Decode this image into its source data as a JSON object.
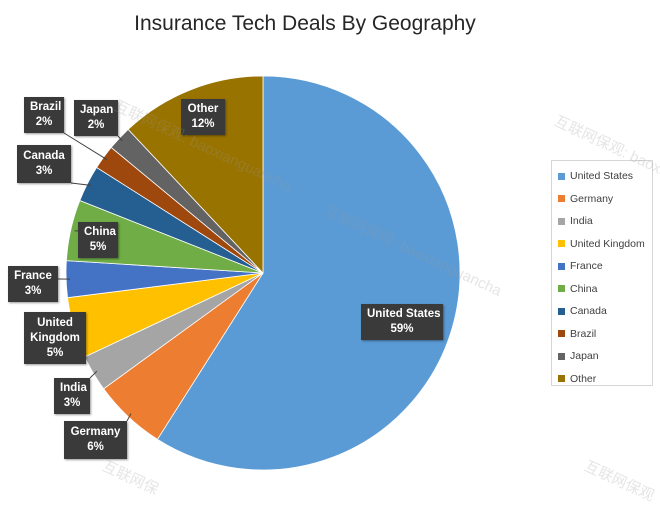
{
  "chart_data": {
    "type": "pie",
    "title": "Insurance Tech Deals By Geography",
    "categories": [
      "United States",
      "Germany",
      "India",
      "United Kingdom",
      "France",
      "China",
      "Canada",
      "Brazil",
      "Japan",
      "Other"
    ],
    "values": [
      59,
      6,
      3,
      5,
      3,
      5,
      3,
      2,
      2,
      12
    ],
    "value_labels": [
      "59%",
      "6%",
      "3%",
      "5%",
      "3%",
      "5%",
      "3%",
      "2%",
      "2%",
      "12%"
    ],
    "colors": [
      "#5b9bd5",
      "#ed7d31",
      "#a5a5a5",
      "#ffc000",
      "#4472c4",
      "#70ad47",
      "#255e91",
      "#9e480e",
      "#636363",
      "#997300"
    ],
    "legend_position": "right",
    "callout_labels": [
      [
        "United States"
      ],
      [
        "Germany"
      ],
      [
        "India"
      ],
      [
        "United",
        "Kingdom"
      ],
      [
        "France"
      ],
      [
        "China"
      ],
      [
        "Canada"
      ],
      [
        "Brazil"
      ],
      [
        "Japan"
      ],
      [
        "Other"
      ]
    ]
  },
  "watermarks": [
    "互联网保观: baoxianguancha",
    "互联网保观: baoxianguancha",
    "互联网保观: baoxianguancha",
    "互联网保观",
    "互联网保"
  ]
}
